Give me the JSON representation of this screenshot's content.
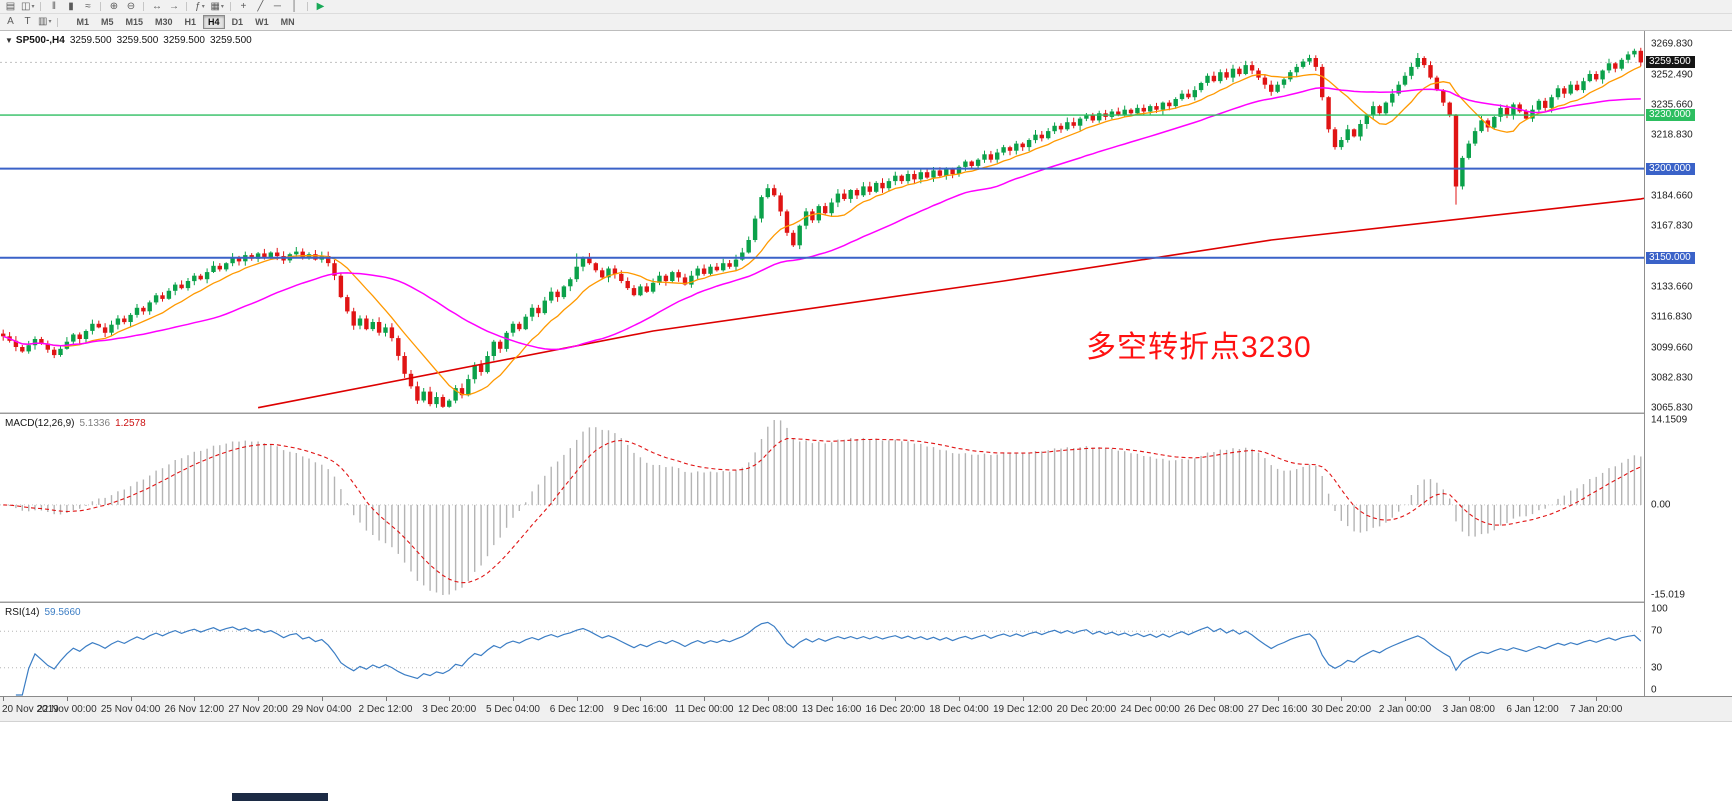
{
  "toolbar": {
    "row1": [
      {
        "glyph": "▤",
        "name": "new-chart"
      },
      {
        "glyph": "◫",
        "name": "chart-profiles",
        "caret": true
      },
      {
        "sep": true
      },
      {
        "glyph": "‖",
        "name": "bar-chart-mode"
      },
      {
        "glyph": "▮",
        "name": "candlestick-mode"
      },
      {
        "glyph": "≈",
        "name": "line-chart-mode"
      },
      {
        "sep": true
      },
      {
        "glyph": "⊕",
        "name": "zoom-in"
      },
      {
        "glyph": "⊖",
        "name": "zoom-out"
      },
      {
        "sep": true
      },
      {
        "glyph": "↔",
        "name": "auto-scroll"
      },
      {
        "glyph": "→",
        "name": "chart-shift"
      },
      {
        "sep": true
      },
      {
        "glyph": "ƒ",
        "name": "indicators",
        "caret": true
      },
      {
        "glyph": "▦",
        "name": "templates",
        "caret": true
      },
      {
        "sep": true
      },
      {
        "glyph": "+",
        "name": "crosshair"
      },
      {
        "glyph": "╱",
        "name": "trendline"
      },
      {
        "glyph": "─",
        "name": "horizontal-line"
      },
      {
        "glyph": "│",
        "name": "vertical-line"
      },
      {
        "sep": true
      },
      {
        "glyph": "▶",
        "name": "autotrading",
        "color": "#18a957"
      }
    ],
    "row2_tools": [
      {
        "glyph": "A",
        "name": "cursor-tool"
      },
      {
        "glyph": "T",
        "name": "text-tool"
      },
      {
        "glyph": "▥",
        "name": "objects-list",
        "caret": true
      }
    ],
    "timeframes": [
      {
        "label": "M1"
      },
      {
        "label": "M5"
      },
      {
        "label": "M15"
      },
      {
        "label": "M30"
      },
      {
        "label": "H1"
      },
      {
        "label": "H4",
        "active": true
      },
      {
        "label": "D1"
      },
      {
        "label": "W1"
      },
      {
        "label": "MN"
      }
    ]
  },
  "price_panel": {
    "header": {
      "collapse_icon": "▼",
      "symbol": "SP500-,H4",
      "ohlc": [
        "3259.500",
        "3259.500",
        "3259.500",
        "3259.500"
      ]
    },
    "annotation": {
      "text": "多空转折点3230",
      "color": "#ff1111"
    },
    "axis_labels": [
      {
        "text": "3269.830",
        "value": 3269.83,
        "type": "grid"
      },
      {
        "text": "3259.500",
        "value": 3259.5,
        "type": "bid"
      },
      {
        "text": "3252.490",
        "value": 3252.49,
        "type": "grid"
      },
      {
        "text": "3235.660",
        "value": 3235.66,
        "type": "grid"
      },
      {
        "text": "3230.000",
        "value": 3230.0,
        "type": "level-green"
      },
      {
        "text": "3218.830",
        "value": 3218.83,
        "type": "grid"
      },
      {
        "text": "3200.000",
        "value": 3200.0,
        "type": "level-blue"
      },
      {
        "text": "3184.660",
        "value": 3184.66,
        "type": "grid"
      },
      {
        "text": "3167.830",
        "value": 3167.83,
        "type": "grid"
      },
      {
        "text": "3150.000",
        "value": 3150.0,
        "type": "level-blue"
      },
      {
        "text": "3133.660",
        "value": 3133.66,
        "type": "grid"
      },
      {
        "text": "3116.830",
        "value": 3116.83,
        "type": "grid"
      },
      {
        "text": "3099.660",
        "value": 3099.66,
        "type": "grid"
      },
      {
        "text": "3082.830",
        "value": 3082.83,
        "type": "grid"
      },
      {
        "text": "3065.830",
        "value": 3065.83,
        "type": "grid"
      }
    ]
  },
  "macd_panel": {
    "title": "MACD(12,26,9)",
    "value_main": "5.1336",
    "value_signal": "1.2578",
    "axis_labels": [
      {
        "text": "14.1509",
        "value": 14.1509
      },
      {
        "text": "0.00",
        "value": 0
      },
      {
        "text": "-15.019",
        "value": -15.019
      }
    ]
  },
  "rsi_panel": {
    "title": "RSI(14)",
    "value": "59.5660",
    "axis_labels": [
      {
        "text": "100",
        "value": 100
      },
      {
        "text": "70",
        "value": 70
      },
      {
        "text": "30",
        "value": 30
      },
      {
        "text": "0",
        "value": 0
      }
    ]
  },
  "chart_data": [
    {
      "id": "price",
      "type": "candlestick",
      "symbol": "SP500-",
      "timeframe": "H4",
      "ylim": [
        3065.83,
        3269.83
      ],
      "last_price": 3259.5,
      "bars_per_label": 10,
      "x_labels": [
        "20 Nov 2019",
        "22 Nov 00:00",
        "25 Nov 04:00",
        "26 Nov 12:00",
        "27 Nov 20:00",
        "29 Nov 04:00",
        "2 Dec 12:00",
        "3 Dec 20:00",
        "5 Dec 04:00",
        "6 Dec 12:00",
        "9 Dec 16:00",
        "11 Dec 00:00",
        "12 Dec 08:00",
        "13 Dec 16:00",
        "16 Dec 20:00",
        "18 Dec 04:00",
        "19 Dec 12:00",
        "20 Dec 20:00",
        "24 Dec 00:00",
        "26 Dec 08:00",
        "27 Dec 16:00",
        "30 Dec 20:00",
        "2 Jan 00:00",
        "3 Jan 08:00",
        "6 Jan 12:00",
        "7 Jan 20:00"
      ],
      "closes": [
        3106,
        3103.5,
        3100,
        3097.5,
        3101,
        3104.5,
        3102,
        3098.5,
        3095.5,
        3099,
        3103,
        3107,
        3104.5,
        3109,
        3113,
        3111,
        3108,
        3112.5,
        3116,
        3114,
        3118,
        3122,
        3120,
        3125,
        3129,
        3127,
        3131.5,
        3135,
        3133,
        3137,
        3140,
        3138,
        3142,
        3145.5,
        3143.5,
        3147,
        3150,
        3148,
        3151.5,
        3149.5,
        3152.5,
        3150.5,
        3153,
        3151,
        3148.5,
        3152,
        3153.5,
        3150,
        3152,
        3149,
        3151,
        3147,
        3140,
        3128,
        3120,
        3112,
        3116,
        3110,
        3114,
        3108,
        3111,
        3105,
        3095,
        3085,
        3078,
        3070,
        3075,
        3068,
        3072,
        3066.5,
        3070,
        3077,
        3073,
        3082,
        3090,
        3086,
        3095,
        3103,
        3099,
        3108,
        3113,
        3110,
        3117,
        3122,
        3119,
        3126,
        3131,
        3128,
        3134,
        3138,
        3145,
        3150,
        3147,
        3143,
        3139,
        3144,
        3141,
        3137,
        3133,
        3129,
        3134,
        3131,
        3136,
        3140,
        3137,
        3142,
        3139,
        3135,
        3140,
        3144,
        3141,
        3145,
        3143,
        3147,
        3145,
        3149,
        3153,
        3160,
        3172,
        3184,
        3189,
        3185,
        3176,
        3164,
        3157,
        3168,
        3176,
        3171,
        3179,
        3175,
        3181,
        3186,
        3183,
        3188,
        3185,
        3190,
        3187,
        3192,
        3189,
        3193,
        3196,
        3193,
        3197,
        3194,
        3198,
        3195,
        3199,
        3196,
        3200,
        3197,
        3201,
        3204,
        3201.5,
        3205,
        3208,
        3205,
        3209,
        3212,
        3210,
        3214,
        3212,
        3216,
        3219,
        3217,
        3221,
        3224,
        3222,
        3226,
        3224,
        3228,
        3230,
        3227,
        3231,
        3229,
        3232,
        3230,
        3233,
        3231,
        3234,
        3232,
        3235,
        3233,
        3237,
        3235,
        3239,
        3242,
        3240,
        3244,
        3248,
        3252,
        3249,
        3254,
        3251,
        3256,
        3253,
        3258,
        3255,
        3251,
        3247,
        3243,
        3247,
        3250,
        3254,
        3257,
        3260,
        3262,
        3257,
        3240,
        3222,
        3212,
        3216,
        3222,
        3218,
        3225,
        3230,
        3235,
        3231,
        3237,
        3242,
        3247,
        3252,
        3257,
        3262,
        3258,
        3251,
        3244,
        3237,
        3230,
        3190,
        3206,
        3214,
        3221,
        3227,
        3223,
        3229,
        3234,
        3230,
        3236,
        3232,
        3228,
        3233,
        3238,
        3234,
        3240,
        3245,
        3242,
        3247,
        3244,
        3249,
        3253,
        3250,
        3255,
        3259,
        3256,
        3261,
        3264,
        3266,
        3259.5
      ],
      "wick_overrides": [
        {
          "i": 69,
          "low": 3065.9
        },
        {
          "i": 90,
          "high": 3152.5
        },
        {
          "i": 205,
          "high": 3263.8
        },
        {
          "i": 222,
          "high": 3264.8
        },
        {
          "i": 228,
          "low": 3179.8
        },
        {
          "i": 256,
          "high": 3267.2
        }
      ],
      "overlays": {
        "ma_fast": {
          "period": 10,
          "color": "#ff9900"
        },
        "ma_slow": {
          "period": 34,
          "color": "#ff00ff"
        },
        "trend_line": {
          "color": "#dd0000",
          "anchors": [
            [
              40,
              3066
            ],
            [
              102,
              3109
            ],
            [
              157,
              3137
            ],
            [
              199,
              3160
            ],
            [
              257,
              3183
            ],
            [
              261,
              3185.5
            ]
          ]
        }
      },
      "hlines": [
        {
          "price": 3230,
          "color": "#2dbe60",
          "width": 1.4,
          "label": "3230.000"
        },
        {
          "price": 3200,
          "color": "#3a62c8",
          "width": 2,
          "label": "3200.000"
        },
        {
          "price": 3150,
          "color": "#3a62c8",
          "width": 2,
          "label": "3150.000"
        }
      ],
      "colors": {
        "up": "#0ba14a",
        "down": "#e01414",
        "bid_line": "#c0c0c0"
      }
    },
    {
      "id": "macd",
      "type": "bar+line",
      "title": "MACD(12,26,9)",
      "params": [
        12,
        26,
        9
      ],
      "current_values": [
        5.1336,
        1.2578
      ],
      "ylim": [
        -15.019,
        14.1509
      ],
      "colors": {
        "histogram": "#b4b4b4",
        "signal": "#e01414",
        "zero": "#c8c8c8"
      }
    },
    {
      "id": "rsi",
      "type": "line",
      "title": "RSI(14)",
      "period": 14,
      "current_value": 59.566,
      "ylim": [
        0,
        100
      ],
      "levels": [
        70,
        30
      ],
      "colors": {
        "line": "#3b7dc4",
        "levels": "#b5b5b5"
      }
    }
  ]
}
